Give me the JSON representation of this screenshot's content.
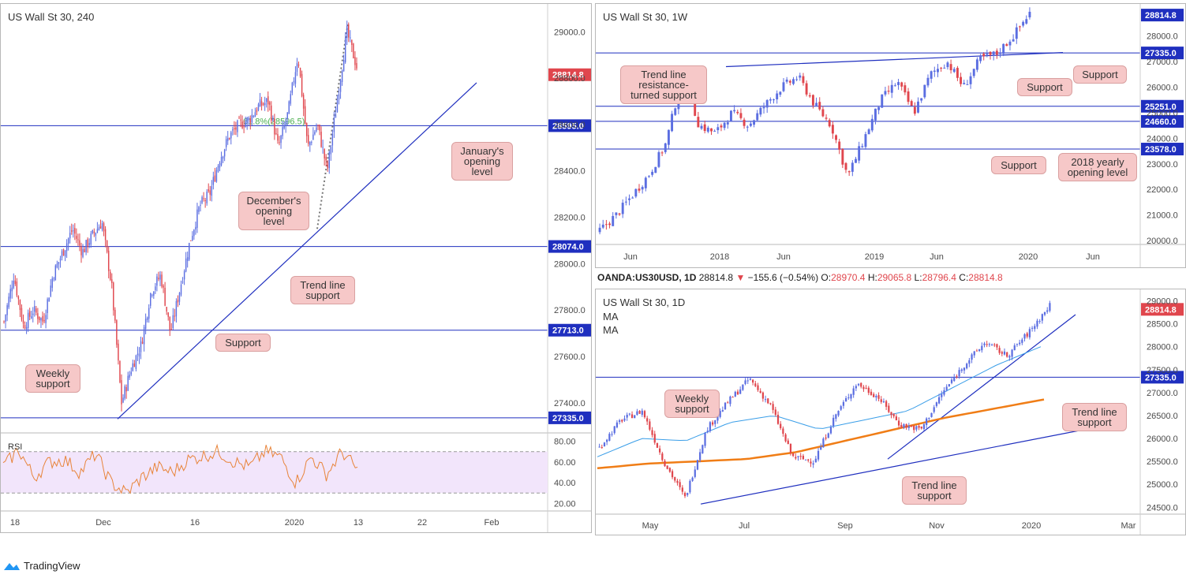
{
  "branding": {
    "name": "TradingView"
  },
  "colors": {
    "up": "#5b6ee1",
    "down": "#e0464d",
    "line": "#1f2fbf",
    "rsi": "#e8843a",
    "ma_blue": "#3a9ee8",
    "ma_orange": "#f07d16"
  },
  "chart_data": [
    {
      "id": "h4",
      "type": "candlestick",
      "title": "US Wall St 30, 240",
      "x_ticks": [
        "18",
        "Dec",
        "16",
        "2020",
        "13",
        "22",
        "Feb"
      ],
      "y_ticks": [
        "29000.0",
        "28800.0",
        "28600.0",
        "28400.0",
        "28200.0",
        "28000.0",
        "27800.0",
        "27600.0",
        "27400.0"
      ],
      "ylim": [
        27270,
        29120
      ],
      "last_price": "28814.8",
      "levels": [
        {
          "value": 28595,
          "label": "28595.0"
        },
        {
          "value": 28074,
          "label": "28074.0"
        },
        {
          "value": 27713,
          "label": "27713.0"
        },
        {
          "value": 27335,
          "label": "27335.0"
        }
      ],
      "fib_label": "61.8%(28596.5)",
      "annotations": [
        "January's\nopening\nlevel",
        "December's\nopening\nlevel",
        "Trend line\nsupport",
        "Support",
        "Weekly\nsupport"
      ],
      "rsi": {
        "label": "RSI",
        "ticks": [
          "80.00",
          "60.00",
          "40.00",
          "20.00"
        ],
        "band": [
          30,
          70
        ],
        "ylim": [
          15,
          85
        ]
      }
    },
    {
      "id": "w1",
      "type": "candlestick",
      "title": "US Wall St 30, 1W",
      "x_ticks": [
        "Jun",
        "2018",
        "Jun",
        "2019",
        "Jun",
        "2020",
        "Jun"
      ],
      "y_ticks": [
        "28000.0",
        "27000.0",
        "26000.0",
        "25000.0",
        "24000.0",
        "23000.0",
        "22000.0",
        "21000.0",
        "20000.0"
      ],
      "ylim": [
        19850,
        29250
      ],
      "last_price": "28814.8",
      "levels": [
        {
          "value": 27335,
          "label": "27335.0"
        },
        {
          "value": 25251,
          "label": "25251.0"
        },
        {
          "value": 24660,
          "label": "24660.0"
        },
        {
          "value": 23578,
          "label": "23578.0"
        }
      ],
      "annotations": [
        "Trend line\nresistance-\nturned support",
        "Support",
        "Support",
        "Support",
        "2018 yearly\nopening level"
      ]
    },
    {
      "id": "d1",
      "type": "candlestick",
      "title": "US Wall St 30, 1D",
      "ma_labels": [
        "MA",
        "MA"
      ],
      "info": {
        "symbol": "OANDA:US30USD, 1D",
        "price": "28814.8",
        "change": "−155.6 (−0.54%)",
        "o": "28970.4",
        "h": "29065.8",
        "l": "28796.4",
        "c": "28814.8"
      },
      "x_ticks": [
        "May",
        "Jul",
        "Sep",
        "Nov",
        "2020",
        "Mar"
      ],
      "y_ticks": [
        "29000.0",
        "28500.0",
        "28000.0",
        "27500.0",
        "27000.0",
        "26500.0",
        "26000.0",
        "25500.0",
        "25000.0",
        "24500.0"
      ],
      "ylim": [
        24350,
        29250
      ],
      "last_price": "28814.8",
      "levels": [
        {
          "value": 27335,
          "label": "27335.0"
        }
      ],
      "annotations": [
        "Weekly\nsupport",
        "Trend line\nsupport",
        "Trend line\nsupport"
      ]
    }
  ]
}
